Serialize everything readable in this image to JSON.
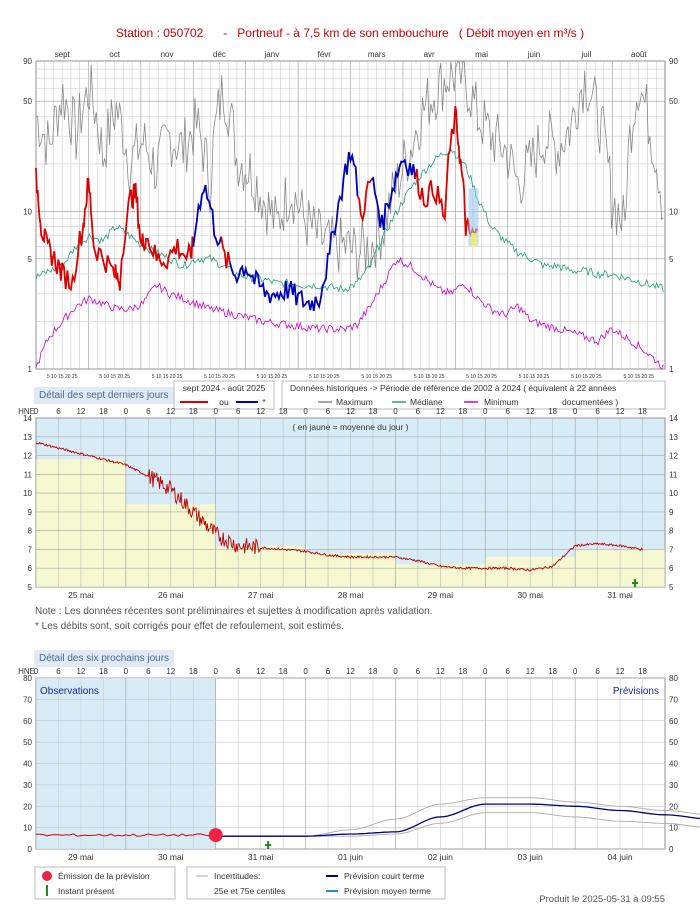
{
  "header": {
    "title": "Station : 050702      -   Portneuf - à 7,5 km de son embouchure   ( Débit moyen en m³/s )"
  },
  "labels": {
    "week_box": "Détail des sept derniers jours",
    "six_days_box": "Détail des six prochains jours",
    "note1": "Note : Les données récentes sont préliminaires et sujettes à modification après validation.",
    "note2": "* Les débits sont, soit corrigés pour effet de refoulement, soit estimés.",
    "footer": "Produit le 2025-05-31 à 09:55",
    "hne": "HNE",
    "jaune_note": "( en jaune = moyenne du jour )",
    "observations": "Observations",
    "previsions": "Prévisions"
  },
  "legend_top": {
    "period_title": "sept 2024 - août 2025",
    "ou": "ou",
    "star": "*",
    "hist_title": "Données historiques -> Période de référence  de 2002 à 2024   ( équivalent à 22 années",
    "documented": "documentées )",
    "max": "Maximum",
    "median": "Médiane",
    "min": "Minimum"
  },
  "legend_bottom": {
    "emission": "Émission de la prévision",
    "instant": "Instant présent",
    "uncertainty": "Incertitudes:",
    "percentiles": "25e et 75e centiles",
    "short_term": "Prévision court terme",
    "medium_term": "Prévision moyen terme"
  },
  "colors": {
    "observed_red": "#dd0000",
    "observed_blue": "#0000bb",
    "maximum": "#888888",
    "median": "#20a080",
    "minimum": "#cc00cc",
    "week_band": "#f5f8d0",
    "sky": "#d8ecf8",
    "short_term": "#000080",
    "medium_term": "#2a8fd0",
    "emission": "#ee2244",
    "present": "#228822"
  },
  "chart_data": [
    {
      "type": "line",
      "title": "Station : 050702 - Portneuf - à 7,5 km de son embouchure ( Débit moyen en m³/s )",
      "yscale": "log",
      "ylim": [
        1,
        90
      ],
      "yticks": [
        1,
        5,
        10,
        50,
        90
      ],
      "months": [
        "sept",
        "oct",
        "nov",
        "déc",
        "janv",
        "févr",
        "mars",
        "avr",
        "mai",
        "juin",
        "juil",
        "août"
      ],
      "day_ticks": "5 10 15 20 25",
      "observed": {
        "name": "sept 2024 - août 2025",
        "x_month_index": [
          0.0,
          0.1,
          0.2,
          0.35,
          0.5,
          0.7,
          0.9,
          1.0,
          1.1,
          1.3,
          1.5,
          1.6,
          1.8,
          1.9,
          2.0,
          2.1,
          2.3,
          2.5,
          2.7,
          2.9,
          3.0,
          3.2,
          3.4,
          3.6,
          3.8,
          4.0,
          4.2,
          4.4,
          4.6,
          4.8,
          5.0,
          5.2,
          5.4,
          5.6,
          5.8,
          6.0,
          6.2,
          6.4,
          6.6,
          6.8,
          7.0,
          7.2,
          7.4,
          7.6,
          7.8,
          8.0,
          8.1,
          8.2,
          8.3,
          8.45
        ],
        "y": [
          16,
          8,
          6,
          5,
          4,
          3.5,
          8,
          15,
          6,
          5,
          4,
          3.6,
          12,
          13,
          6,
          7,
          5,
          5,
          6,
          5,
          6,
          15,
          8,
          5,
          4,
          4.5,
          3.5,
          3,
          3,
          3.2,
          2.8,
          2.6,
          2.8,
          5,
          12,
          24,
          9,
          16,
          8,
          14,
          22,
          18,
          12,
          14,
          9,
          40,
          20,
          8,
          7,
          7
        ],
        "blue_spans_month_index": [
          [
            3.0,
            3.5
          ],
          [
            3.7,
            6.1
          ],
          [
            6.4,
            7.2
          ]
        ]
      },
      "maximum": [
        40,
        25,
        55,
        30,
        60,
        22,
        45,
        20,
        28,
        18,
        30,
        25,
        35,
        15,
        60,
        22,
        18,
        12,
        8,
        14,
        9,
        7,
        6,
        6,
        5.5,
        6,
        8,
        15,
        25,
        45,
        60,
        75,
        70,
        40,
        30,
        25,
        15,
        20,
        30,
        25,
        35,
        70,
        40,
        12,
        8,
        65,
        30,
        7
      ],
      "median": [
        3.8,
        4.2,
        4.5,
        6,
        7,
        6.5,
        8,
        7,
        6,
        5.5,
        5,
        4.5,
        5,
        5,
        4.5,
        4,
        3.8,
        3.7,
        3.5,
        3.5,
        3.4,
        3.4,
        3.3,
        3.2,
        3.5,
        4.5,
        7,
        10,
        14,
        18,
        22,
        25,
        20,
        12,
        8,
        6.5,
        5.5,
        5,
        4.5,
        4.5,
        4.2,
        4.2,
        4,
        4,
        3.8,
        3.6,
        3.4,
        3.2
      ],
      "minimum": [
        1,
        1.6,
        2,
        2.5,
        2.8,
        2.6,
        2.4,
        2.4,
        2.6,
        3.4,
        3,
        2.8,
        2.6,
        2.4,
        2.3,
        2.2,
        2.1,
        2,
        1.95,
        1.9,
        1.85,
        1.8,
        1.8,
        1.78,
        1.9,
        2.5,
        3.5,
        5,
        4.5,
        3.8,
        3.2,
        3,
        3.5,
        2.8,
        2.4,
        2.2,
        2.5,
        2,
        1.9,
        1.8,
        1.7,
        1.6,
        1.5,
        1.8,
        1.6,
        1.4,
        1.2,
        1
      ]
    },
    {
      "type": "line",
      "title": "Détail des sept derniers jours",
      "ylim": [
        5,
        14
      ],
      "yticks": [
        5,
        6,
        7,
        8,
        9,
        10,
        11,
        12,
        13,
        14
      ],
      "hour_ticks": [
        "6",
        "12",
        "18",
        "0"
      ],
      "days": [
        "25 mai",
        "26 mai",
        "27 mai",
        "28 mai",
        "29 mai",
        "30 mai",
        "31 mai"
      ],
      "note": "( en jaune = moyenne du jour )",
      "daily_mean": [
        11.8,
        9.4,
        7.2,
        6.8,
        6.2,
        6.6,
        7.0
      ],
      "series_hours": [
        0,
        6,
        12,
        18,
        24,
        30,
        36,
        42,
        48,
        54,
        60,
        66,
        72,
        78,
        84,
        90,
        96,
        102,
        108,
        114,
        120,
        126,
        132,
        138,
        144,
        150,
        156,
        162,
        168
      ],
      "series_values": [
        12.7,
        12.4,
        12.1,
        11.8,
        11.5,
        10.9,
        10.2,
        9.0,
        7.8,
        7.2,
        7.1,
        7.0,
        6.9,
        6.7,
        6.6,
        6.6,
        6.6,
        6.4,
        6.1,
        6.0,
        6.0,
        6.0,
        5.9,
        6.1,
        7.2,
        7.3,
        7.2,
        7.0,
        7.0
      ]
    },
    {
      "type": "line",
      "title": "Détail des six prochains jours",
      "ylim": [
        0,
        80
      ],
      "yticks": [
        0,
        10,
        20,
        30,
        40,
        50,
        60,
        70,
        80
      ],
      "hour_ticks": [
        "6",
        "12",
        "18",
        "0"
      ],
      "days": [
        "29 mai",
        "30 mai",
        "31 mai",
        "01 juin",
        "02 juin",
        "03 juin",
        "04 juin"
      ],
      "observed_days": 2,
      "observed_value": 6.5,
      "forecast_hours": [
        48,
        60,
        72,
        84,
        96,
        108,
        120,
        132,
        144,
        156,
        168,
        180,
        192
      ],
      "short_term": [
        6,
        6,
        6,
        7,
        8,
        15,
        21,
        21,
        20,
        18,
        16,
        14,
        13
      ],
      "p75": [
        6,
        6,
        6,
        9,
        14,
        21,
        24,
        24,
        22,
        20,
        18,
        16,
        16
      ],
      "p25": [
        6,
        6,
        6,
        6,
        7,
        12,
        17,
        17,
        15,
        13,
        12,
        10,
        9
      ]
    }
  ]
}
